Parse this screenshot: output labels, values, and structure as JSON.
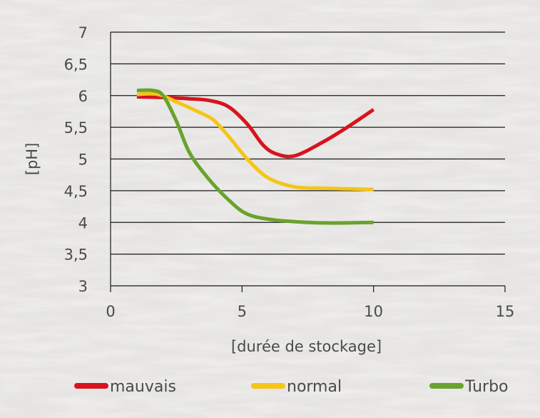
{
  "chart_data": {
    "type": "line",
    "xlabel": "[durée de stockage]",
    "ylabel": "[pH]",
    "xlim": [
      0,
      15
    ],
    "ylim": [
      3,
      7
    ],
    "x_ticks": [
      0,
      5,
      10,
      15
    ],
    "x_tick_labels": [
      "0",
      "5",
      "10",
      "15"
    ],
    "y_ticks": [
      3,
      3.5,
      4,
      4.5,
      5,
      5.5,
      6,
      6.5,
      7
    ],
    "y_tick_labels": [
      "3",
      "3,5",
      "4",
      "4,5",
      "5",
      "5,5",
      "6",
      "6,5",
      "7"
    ],
    "grid": "horizontal",
    "legend_position": "bottom",
    "series": [
      {
        "name": "mauvais",
        "color": "#d7141e",
        "points": [
          [
            1,
            5.98
          ],
          [
            2,
            5.97
          ],
          [
            3,
            5.95
          ],
          [
            3.8,
            5.92
          ],
          [
            4.5,
            5.82
          ],
          [
            5.2,
            5.55
          ],
          [
            5.8,
            5.22
          ],
          [
            6.3,
            5.08
          ],
          [
            7,
            5.05
          ],
          [
            8,
            5.25
          ],
          [
            9,
            5.5
          ],
          [
            10,
            5.78
          ]
        ]
      },
      {
        "name": "normal",
        "color": "#f5c518",
        "points": [
          [
            1,
            6.02
          ],
          [
            1.8,
            6.02
          ],
          [
            2.5,
            5.9
          ],
          [
            3.3,
            5.75
          ],
          [
            3.9,
            5.62
          ],
          [
            4.5,
            5.35
          ],
          [
            5.2,
            5.0
          ],
          [
            6,
            4.7
          ],
          [
            7,
            4.56
          ],
          [
            8,
            4.54
          ],
          [
            9,
            4.53
          ],
          [
            10,
            4.52
          ]
        ]
      },
      {
        "name": "Turbo",
        "color": "#6aa22d",
        "points": [
          [
            1,
            6.08
          ],
          [
            1.6,
            6.08
          ],
          [
            2,
            6.0
          ],
          [
            2.5,
            5.6
          ],
          [
            3,
            5.1
          ],
          [
            3.7,
            4.7
          ],
          [
            4.5,
            4.35
          ],
          [
            5.2,
            4.13
          ],
          [
            6.2,
            4.04
          ],
          [
            7.5,
            4.0
          ],
          [
            8.5,
            3.99
          ],
          [
            10,
            4.0
          ]
        ]
      }
    ]
  }
}
